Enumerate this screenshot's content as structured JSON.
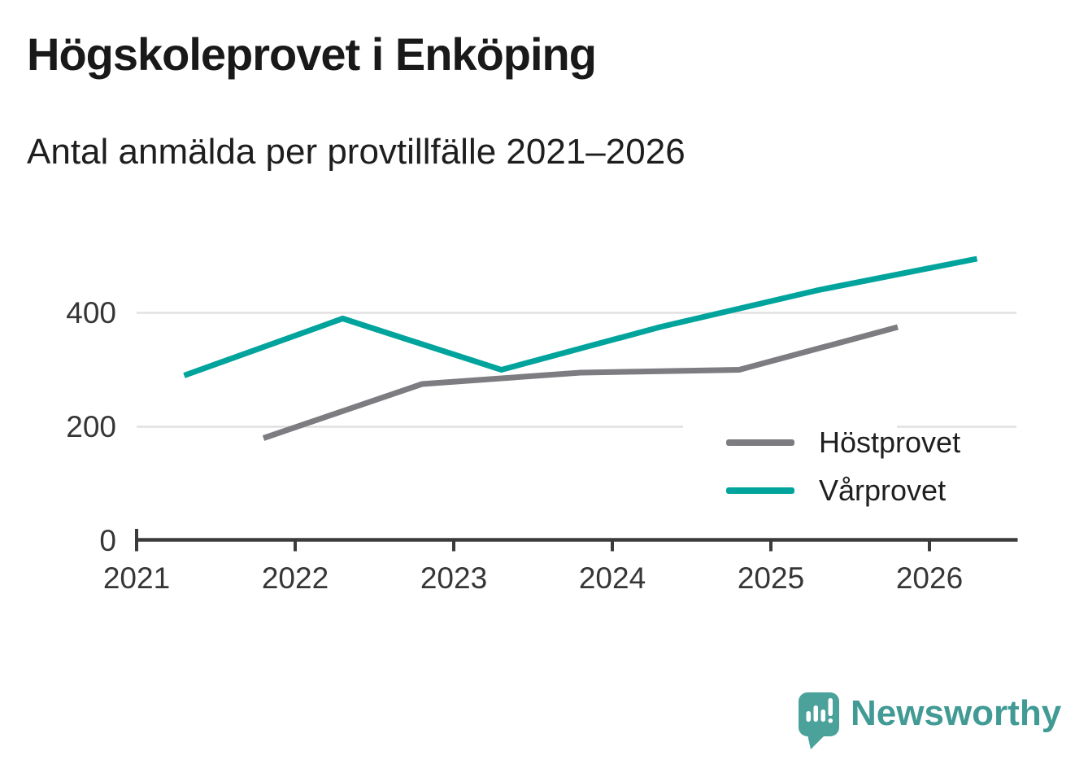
{
  "chart_data": {
    "type": "line",
    "title": "Högskoleprovet i Enköping",
    "subtitle": "Antal anmälda per provtillfälle 2021–2026",
    "xlabel": "",
    "ylabel": "",
    "x_tick_labels": [
      "2021",
      "2022",
      "2023",
      "2024",
      "2025",
      "2026"
    ],
    "y_tick_labels": [
      "0",
      "200",
      "400"
    ],
    "gridline_values": [
      200,
      400
    ],
    "xlim": [
      2021,
      2026.55
    ],
    "ylim": [
      0,
      520
    ],
    "grid": "horizontal-y",
    "legend_position": "inside-right",
    "series": [
      {
        "name": "Höstprovet",
        "color": "#7c7c81",
        "x": [
          2021.8,
          2022.8,
          2023.8,
          2024.8,
          2025.8
        ],
        "values": [
          180,
          275,
          295,
          300,
          375
        ]
      },
      {
        "name": "Vårprovet",
        "color": "#00a49c",
        "x": [
          2021.3,
          2022.3,
          2023.3,
          2024.3,
          2025.3,
          2026.3
        ],
        "values": [
          290,
          390,
          300,
          375,
          440,
          495
        ]
      }
    ]
  },
  "branding": {
    "logo_text": "Newsworthy",
    "logo_text_color": "#419a94",
    "logo_bubble_color": "#4ba29b"
  },
  "colors": {
    "axis": "#3b3b3b",
    "gridline": "#e1e1e1",
    "tick_label": "#363636",
    "title": "#191919",
    "background": "#ffffff"
  }
}
